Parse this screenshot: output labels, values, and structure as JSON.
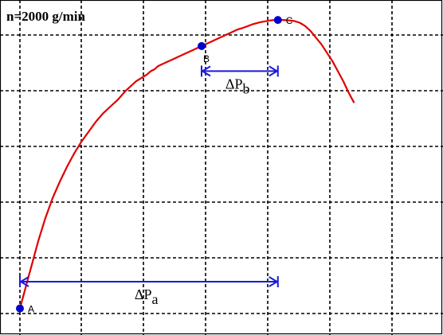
{
  "chart_data": {
    "type": "line",
    "title": "n=2000 g/min",
    "xlabel": "",
    "ylabel": "",
    "grid": true,
    "series": [
      {
        "color": "#e00000",
        "x": [
          0.0,
          0.1,
          0.2,
          0.4,
          0.7,
          1.0,
          1.4,
          1.8,
          2.2,
          2.6,
          3.0,
          3.4,
          3.8,
          4.2,
          4.6,
          5.0,
          5.4,
          5.8,
          6.1,
          6.4,
          6.7,
          7.0,
          7.2,
          7.4,
          7.6,
          7.8,
          8.0,
          8.2,
          8.4,
          8.6,
          8.8,
          9.0,
          9.2,
          9.4,
          9.6,
          9.8,
          10.0,
          10.2,
          10.4,
          10.6,
          10.8,
          11.0,
          11.2,
          11.4,
          11.6,
          11.8,
          12.0,
          12.2,
          12.4,
          12.6,
          12.8,
          13.0,
          13.2,
          13.4,
          13.6,
          13.8,
          14.0,
          14.2,
          14.5,
          14.8,
          15.1,
          15.4,
          15.7,
          16.0,
          16.3,
          16.6,
          16.9,
          17.2,
          17.5,
          17.8,
          18.1,
          18.4
        ],
        "y": [
          0.2,
          0.4,
          0.6,
          1.0,
          1.6,
          2.2,
          2.9,
          3.5,
          4.0,
          4.45,
          4.85,
          5.2,
          5.5,
          5.8,
          6.05,
          6.25,
          6.45,
          6.7,
          6.85,
          7.0,
          7.1,
          7.2,
          7.3,
          7.35,
          7.45,
          7.5,
          7.55,
          7.6,
          7.65,
          7.7,
          7.75,
          7.8,
          7.85,
          7.9,
          7.95,
          8.0,
          8.05,
          8.1,
          8.15,
          8.2,
          8.25,
          8.3,
          8.35,
          8.4,
          8.45,
          8.5,
          8.55,
          8.58,
          8.62,
          8.66,
          8.7,
          8.73,
          8.76,
          8.78,
          8.8,
          8.82,
          8.83,
          8.83,
          8.83,
          8.82,
          8.8,
          8.75,
          8.65,
          8.5,
          8.3,
          8.1,
          7.85,
          7.6,
          7.3,
          7.0,
          6.65,
          6.35
        ]
      }
    ],
    "points": [
      {
        "label": "A",
        "x": 0.0,
        "y": 0.2
      },
      {
        "label": "B",
        "x": 10.0,
        "y": 8.05
      },
      {
        "label": "C",
        "x": 14.2,
        "y": 8.83
      }
    ],
    "annotations": [
      {
        "base": "ΔP",
        "sub": "a",
        "from": "A",
        "to": "C",
        "level": 1.0
      },
      {
        "base": "ΔP",
        "sub": "b",
        "from": "B",
        "to": "C",
        "level": 7.3
      }
    ],
    "colors": {
      "curve": "#e00000",
      "points": "#0000cc",
      "arrows": "#1a1adc",
      "grid": "#000000"
    }
  }
}
